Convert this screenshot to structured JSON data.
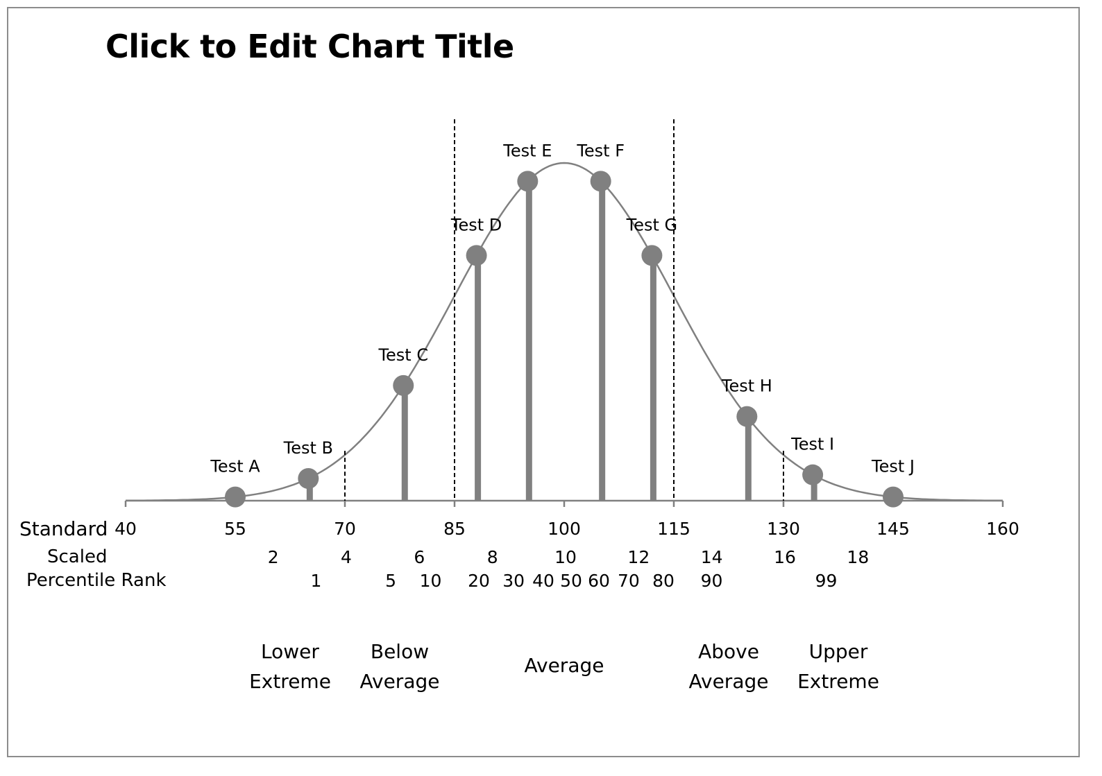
{
  "chart_data": {
    "type": "line",
    "title": "Click to Edit Chart Title",
    "curve": {
      "distribution": "normal",
      "mean": 100,
      "sd": 15,
      "color": "#808080"
    },
    "xlim": [
      40,
      160
    ],
    "axes": {
      "standard": {
        "label": "Standard",
        "values": [
          40,
          55,
          70,
          85,
          100,
          115,
          130,
          145,
          160
        ]
      },
      "scaled": {
        "label": "Scaled",
        "values": [
          2,
          4,
          6,
          8,
          10,
          12,
          14,
          16,
          18
        ]
      },
      "percentile": {
        "label": "Percentile Rank",
        "values": [
          1,
          5,
          10,
          20,
          30,
          40,
          50,
          60,
          70,
          80,
          90,
          99
        ]
      }
    },
    "points": [
      {
        "label": "Test A",
        "x": 55
      },
      {
        "label": "Test B",
        "x": 65
      },
      {
        "label": "Test C",
        "x": 78
      },
      {
        "label": "Test D",
        "x": 88
      },
      {
        "label": "Test E",
        "x": 95
      },
      {
        "label": "Test F",
        "x": 105
      },
      {
        "label": "Test G",
        "x": 112
      },
      {
        "label": "Test H",
        "x": 125
      },
      {
        "label": "Test I",
        "x": 134
      },
      {
        "label": "Test J",
        "x": 145
      }
    ],
    "dividers": [
      70,
      85,
      115,
      130
    ],
    "bands": [
      {
        "lines": [
          "Lower",
          "Extreme"
        ],
        "x": 62.5
      },
      {
        "lines": [
          "Below",
          "Average"
        ],
        "x": 77.5
      },
      {
        "lines": [
          "Average"
        ],
        "x": 100
      },
      {
        "lines": [
          "Above",
          "Average"
        ],
        "x": 122.5
      },
      {
        "lines": [
          "Upper",
          "Extreme"
        ],
        "x": 137.5
      }
    ],
    "colors": {
      "marker": "#808080",
      "axis": "#808080"
    }
  }
}
